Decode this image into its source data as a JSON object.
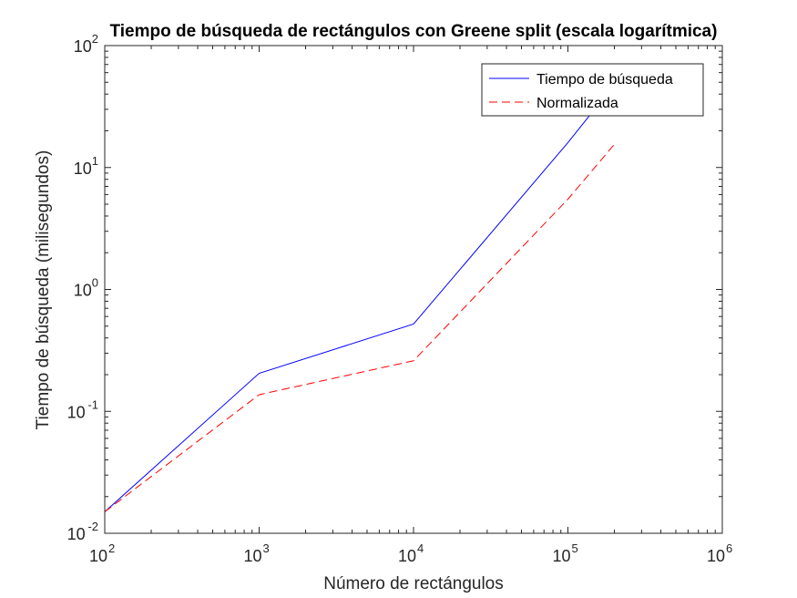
{
  "chart_data": {
    "type": "line",
    "title": "Tiempo de búsqueda de rectángulos con Greene split (escala logarítmica)",
    "xlabel": "Número de rectángulos",
    "ylabel": "Tiempo de búsqueda (milisegundos)",
    "xscale": "log",
    "yscale": "log",
    "xlim": [
      100,
      1000000
    ],
    "ylim": [
      0.01,
      100
    ],
    "grid": false,
    "legend_position": "top-right",
    "x_ticks": [
      {
        "value": 100,
        "base": "10",
        "exp": "2"
      },
      {
        "value": 1000,
        "base": "10",
        "exp": "3"
      },
      {
        "value": 10000,
        "base": "10",
        "exp": "4"
      },
      {
        "value": 100000,
        "base": "10",
        "exp": "5"
      },
      {
        "value": 1000000,
        "base": "10",
        "exp": "6"
      }
    ],
    "y_ticks": [
      {
        "value": 0.01,
        "base": "10",
        "exp": "-2"
      },
      {
        "value": 0.1,
        "base": "10",
        "exp": "-1"
      },
      {
        "value": 1,
        "base": "10",
        "exp": "0"
      },
      {
        "value": 10,
        "base": "10",
        "exp": "1"
      },
      {
        "value": 100,
        "base": "10",
        "exp": "2"
      }
    ],
    "series": [
      {
        "name": "Tiempo de búsqueda",
        "color": "#0000ff",
        "style": "solid",
        "x": [
          100,
          1000,
          10000,
          100000,
          200000
        ],
        "y": [
          0.015,
          0.205,
          0.52,
          16,
          48
        ]
      },
      {
        "name": "Normalizada",
        "color": "#ff0000",
        "style": "dashed",
        "x": [
          100,
          1000,
          10000,
          100000,
          200000
        ],
        "y": [
          0.015,
          0.137,
          0.26,
          5.5,
          15.5
        ]
      }
    ]
  }
}
